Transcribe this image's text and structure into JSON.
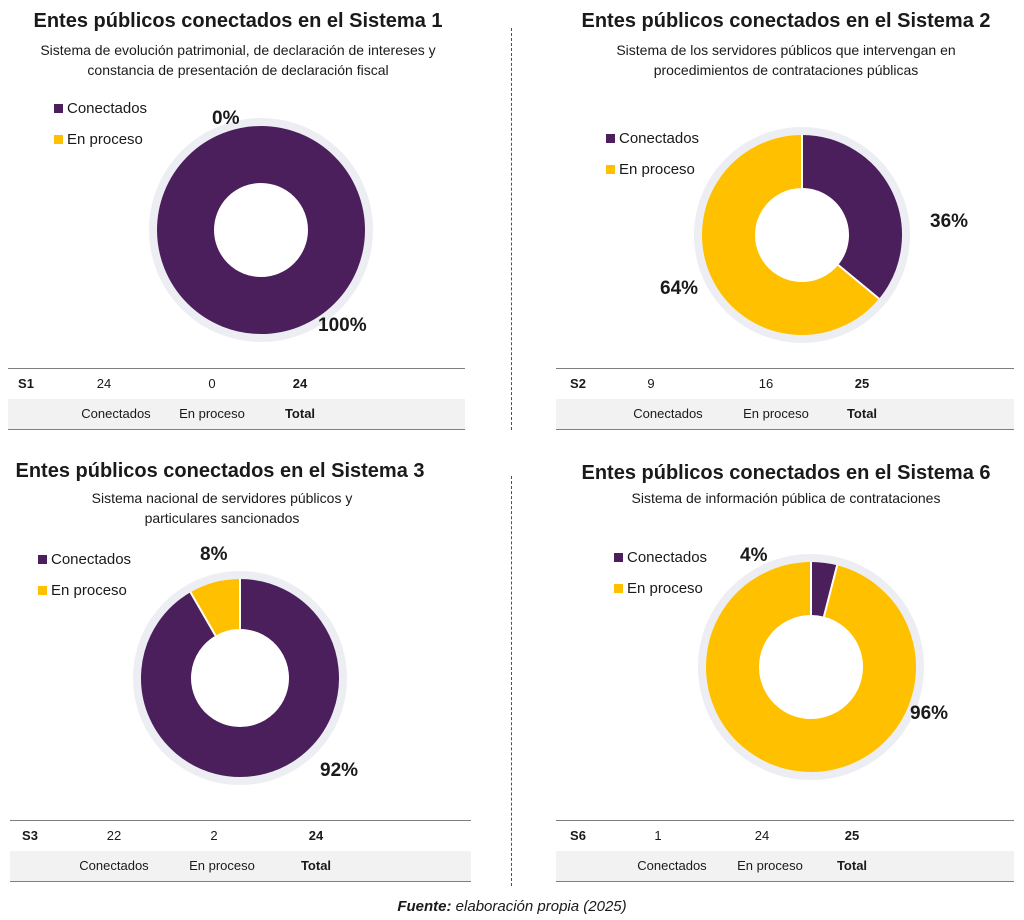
{
  "panels": [
    {
      "title": "Entes públicos conectados en el Sistema 1",
      "subtitle_lines": [
        "Sistema de evolución patrimonial, de declaración de intereses  y",
        "constancia de presentación de declaración fiscal"
      ],
      "legend": [
        "Conectados",
        "En proceso"
      ],
      "pct_labels": {
        "conectados": "100%",
        "en_proceso": "0%"
      },
      "table": {
        "code": "S1",
        "conectados": "24",
        "en_proceso": "0",
        "total": "24",
        "headers": [
          "Conectados",
          "En proceso",
          "Total"
        ]
      }
    },
    {
      "title": "Entes públicos conectados en el Sistema 2",
      "subtitle_lines": [
        "Sistema de los servidores públicos que intervengan en",
        "procedimientos de contrataciones públicas"
      ],
      "legend": [
        "Conectados",
        "En proceso"
      ],
      "pct_labels": {
        "conectados": "36%",
        "en_proceso": "64%"
      },
      "table": {
        "code": "S2",
        "conectados": "9",
        "en_proceso": "16",
        "total": "25",
        "headers": [
          "Conectados",
          "En proceso",
          "Total"
        ]
      }
    },
    {
      "title": "Entes públicos conectados en el Sistema 3",
      "subtitle_lines": [
        "Sistema nacional de servidores públicos y",
        "particulares sancionados"
      ],
      "legend": [
        "Conectados",
        "En proceso"
      ],
      "pct_labels": {
        "conectados": "92%",
        "en_proceso": "8%"
      },
      "table": {
        "code": "S3",
        "conectados": "22",
        "en_proceso": "2",
        "total": "24",
        "headers": [
          "Conectados",
          "En proceso",
          "Total"
        ]
      }
    },
    {
      "title": "Entes públicos conectados en el Sistema 6",
      "subtitle_lines": [
        "Sistema de información pública de contrataciones"
      ],
      "legend": [
        "Conectados",
        "En proceso"
      ],
      "pct_labels": {
        "conectados": "4%",
        "en_proceso": "96%"
      },
      "table": {
        "code": "S6",
        "conectados": "1",
        "en_proceso": "24",
        "total": "25",
        "headers": [
          "Conectados",
          "En proceso",
          "Total"
        ]
      }
    }
  ],
  "colors": {
    "conectados": "#4b1f5b",
    "en_proceso": "#ffc000"
  },
  "source": {
    "label": "Fuente:",
    "text": " elaboración propia (2025)"
  },
  "chart_data": [
    {
      "type": "pie",
      "title": "Entes públicos conectados en el Sistema 1",
      "categories": [
        "Conectados",
        "En proceso"
      ],
      "values": [
        24,
        0
      ],
      "percent_labels": [
        "100%",
        "0%"
      ],
      "total": 24
    },
    {
      "type": "pie",
      "title": "Entes públicos conectados en el Sistema 2",
      "categories": [
        "Conectados",
        "En proceso"
      ],
      "values": [
        9,
        16
      ],
      "percent_labels": [
        "36%",
        "64%"
      ],
      "total": 25
    },
    {
      "type": "pie",
      "title": "Entes públicos conectados en el Sistema 3",
      "categories": [
        "Conectados",
        "En proceso"
      ],
      "values": [
        22,
        2
      ],
      "percent_labels": [
        "92%",
        "8%"
      ],
      "total": 24
    },
    {
      "type": "pie",
      "title": "Entes públicos conectados en el Sistema 6",
      "categories": [
        "Conectados",
        "En proceso"
      ],
      "values": [
        1,
        24
      ],
      "percent_labels": [
        "4%",
        "96%"
      ],
      "total": 25
    }
  ]
}
